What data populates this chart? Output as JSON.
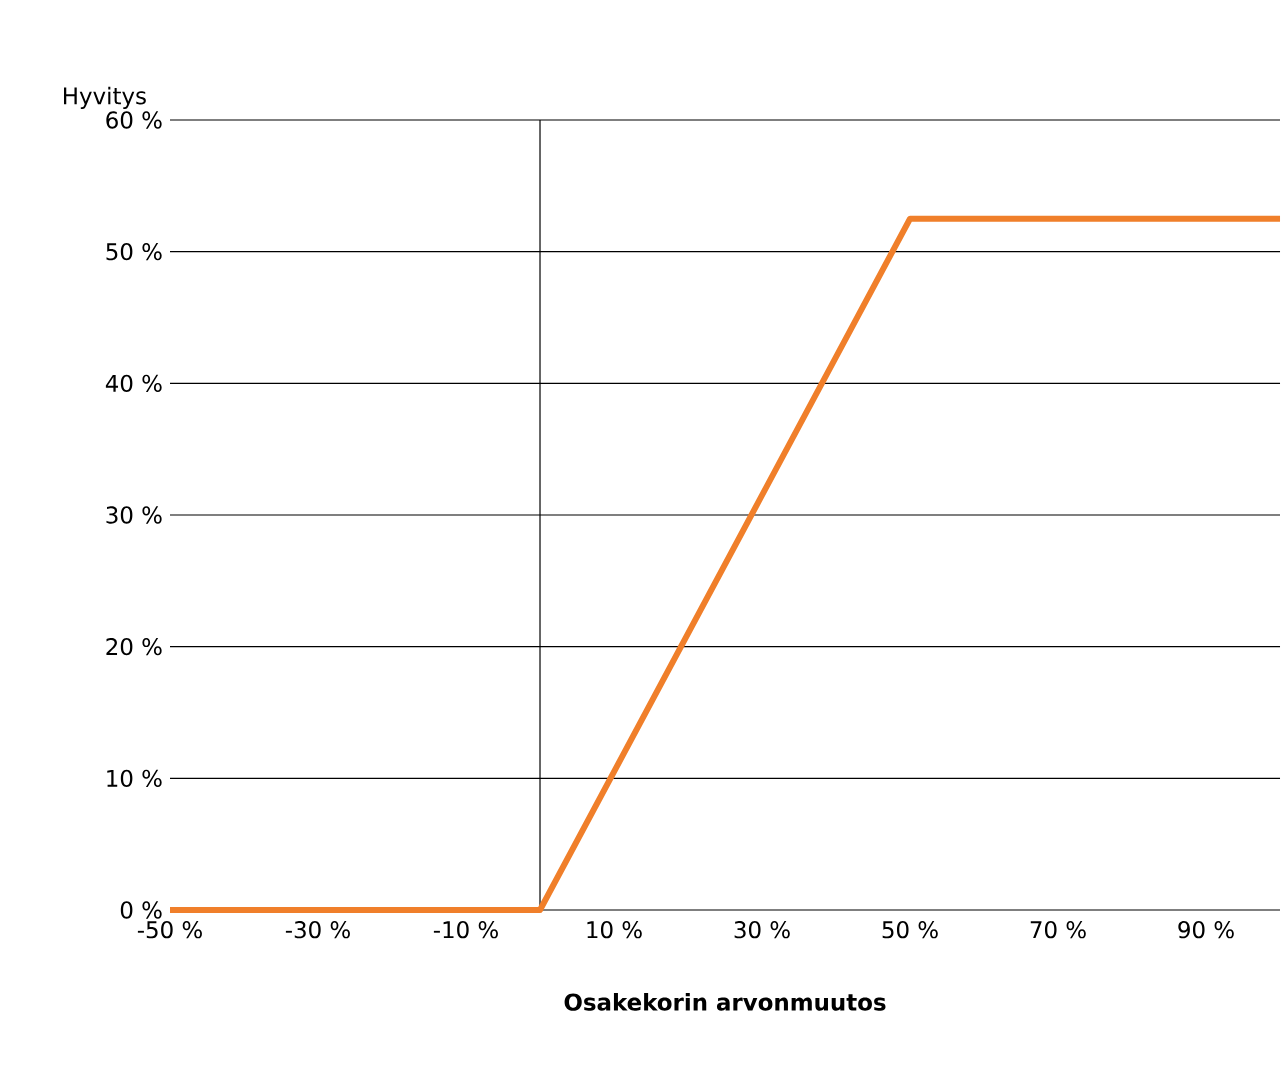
{
  "chart_data": {
    "type": "line",
    "xlabel": "Osakekorin arvonmuutos",
    "ylabel": "Hyvitys",
    "series": [
      {
        "color": "#f07f2a",
        "x": [
          -50,
          0,
          50,
          100
        ],
        "values": [
          0,
          0,
          52.5,
          52.5
        ]
      }
    ],
    "xlim": [
      -50,
      100
    ],
    "xticks": [
      {
        "value": -50,
        "label": "-50 %"
      },
      {
        "value": -30,
        "label": "-30 %"
      },
      {
        "value": -10,
        "label": "-10 %"
      },
      {
        "value": 10,
        "label": "10 %"
      },
      {
        "value": 30,
        "label": "30 %"
      },
      {
        "value": 50,
        "label": "50 %"
      },
      {
        "value": 70,
        "label": "70 %"
      },
      {
        "value": 90,
        "label": "90 %"
      }
    ],
    "ylim": [
      0,
      60
    ],
    "yticks": [
      {
        "value": 0,
        "label": "0 %"
      },
      {
        "value": 10,
        "label": "10 %"
      },
      {
        "value": 20,
        "label": "20 %"
      },
      {
        "value": 30,
        "label": "30 %"
      },
      {
        "value": 40,
        "label": "40 %"
      },
      {
        "value": 50,
        "label": "50 %"
      },
      {
        "value": 60,
        "label": "60 %"
      }
    ],
    "grid": "y",
    "ref_lines": [
      {
        "axis": "x",
        "value": 0,
        "color": "#000000"
      }
    ]
  }
}
